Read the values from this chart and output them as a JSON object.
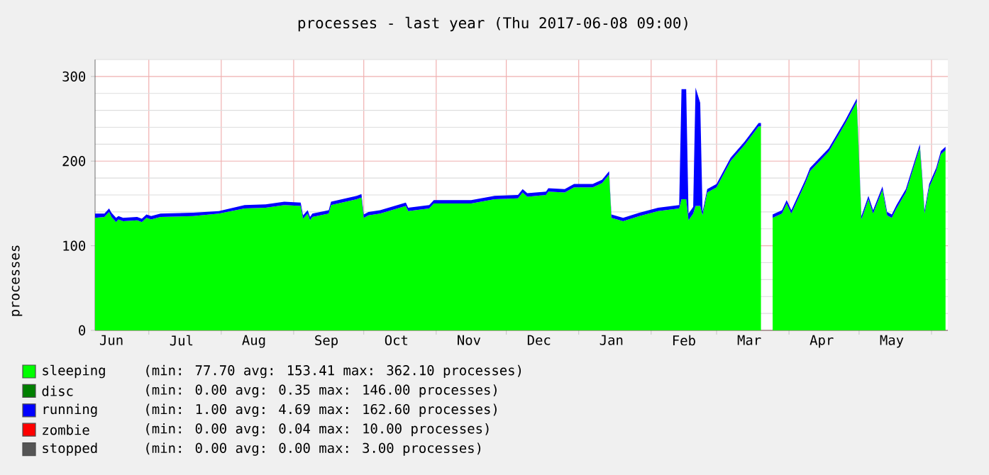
{
  "chart_data": {
    "type": "area",
    "stacked": true,
    "title": "processes - last year (Thu 2017-06-08 09:00)",
    "ylabel": "processes",
    "x": [
      "2016-06-08",
      "2016-06-12",
      "2016-06-14",
      "2016-06-15",
      "2016-06-17",
      "2016-06-18",
      "2016-06-20",
      "2016-06-26",
      "2016-06-28",
      "2016-06-30",
      "2016-07-02",
      "2016-07-06",
      "2016-07-20",
      "2016-07-31",
      "2016-08-11",
      "2016-08-20",
      "2016-08-28",
      "2016-09-04",
      "2016-09-05",
      "2016-09-07",
      "2016-09-08",
      "2016-09-09",
      "2016-09-16",
      "2016-09-17",
      "2016-09-28",
      "2016-09-30",
      "2016-10-01",
      "2016-10-03",
      "2016-10-08",
      "2016-10-19",
      "2016-10-20",
      "2016-10-29",
      "2016-10-31",
      "2016-11-16",
      "2016-11-26",
      "2016-12-06",
      "2016-12-08",
      "2016-12-10",
      "2016-12-18",
      "2016-12-19",
      "2016-12-26",
      "2016-12-30",
      "2017-01-07",
      "2017-01-11",
      "2017-01-14",
      "2017-01-15",
      "2017-01-20",
      "2017-01-27",
      "2017-02-04",
      "2017-02-13",
      "2017-02-14",
      "2017-02-16",
      "2017-02-17",
      "2017-02-19",
      "2017-02-20",
      "2017-02-22",
      "2017-02-23",
      "2017-02-25",
      "2017-03-01",
      "2017-03-07",
      "2017-03-13",
      "2017-03-19",
      "2017-03-20",
      "2017-03-22",
      "2017-03-25",
      "2017-03-29",
      "2017-03-31",
      "2017-04-02",
      "2017-04-08",
      "2017-04-10",
      "2017-04-18",
      "2017-04-25",
      "2017-04-30",
      "2017-05-02",
      "2017-05-05",
      "2017-05-07",
      "2017-05-11",
      "2017-05-13",
      "2017-05-15",
      "2017-05-17",
      "2017-05-21",
      "2017-05-27",
      "2017-05-28",
      "2017-05-29",
      "2017-05-31",
      "2017-06-03",
      "2017-06-05",
      "2017-06-07"
    ],
    "series": [
      {
        "name": "sleeping",
        "color": "#00ff00",
        "values": [
          133,
          134,
          140,
          134,
          128,
          131,
          129,
          130,
          128,
          133,
          131,
          134,
          135,
          138,
          144,
          145,
          148,
          147,
          132,
          138,
          130,
          134,
          138,
          148,
          155,
          157,
          133,
          136,
          138,
          147,
          141,
          144,
          150,
          150,
          155,
          156,
          163,
          158,
          160,
          164,
          163,
          169,
          169,
          174,
          184,
          133,
          129,
          135,
          141,
          144,
          155,
          155,
          130,
          138,
          147,
          147,
          136,
          163,
          169,
          200,
          219,
          241,
          241,
          null,
          133,
          138,
          150,
          138,
          174,
          188,
          211,
          244,
          270,
          131,
          155,
          138,
          166,
          136,
          133,
          144,
          163,
          216,
          180,
          138,
          169,
          188,
          208,
          213
        ]
      },
      {
        "name": "disc",
        "color": "#007f00",
        "values": [
          null,
          null,
          null,
          null,
          null,
          null,
          null,
          null,
          null,
          null,
          null,
          null,
          null,
          null,
          null,
          null,
          null,
          null,
          null,
          null,
          null,
          null,
          null,
          null,
          null,
          null,
          null,
          null,
          null,
          null,
          null,
          null,
          null,
          null,
          null,
          null,
          null,
          null,
          null,
          null,
          null,
          null,
          null,
          null,
          null,
          null,
          null,
          null,
          null,
          null,
          null,
          null,
          null,
          null,
          null,
          null,
          null,
          null,
          null,
          null,
          null,
          null,
          null,
          null,
          null,
          null,
          null,
          null,
          null,
          null,
          null,
          null,
          null,
          null,
          null,
          null,
          null,
          null,
          null,
          null,
          null,
          null,
          null,
          null,
          null,
          null,
          null,
          null
        ]
      },
      {
        "name": "running",
        "color": "#0000ff",
        "values": [
          5,
          4,
          4,
          5,
          5,
          4,
          4,
          4,
          4,
          4,
          4,
          4,
          4,
          3,
          4,
          4,
          4,
          4,
          4,
          4,
          4,
          4,
          4,
          4,
          4,
          4,
          4,
          4,
          4,
          4,
          4,
          4,
          4,
          4,
          4,
          4,
          4,
          4,
          4,
          4,
          4,
          4,
          4,
          4,
          4,
          4,
          4,
          4,
          4,
          4,
          130,
          130,
          8,
          8,
          140,
          122,
          4,
          4,
          4,
          4,
          4,
          4,
          4,
          null,
          4,
          4,
          4,
          4,
          4,
          4,
          4,
          4,
          4,
          4,
          4,
          4,
          4,
          4,
          4,
          4,
          4,
          4,
          4,
          4,
          4,
          4,
          4,
          4
        ]
      },
      {
        "name": "zombie",
        "color": "#ff0000",
        "values": [
          null,
          null,
          null,
          null,
          null,
          null,
          null,
          null,
          null,
          null,
          null,
          null,
          null,
          null,
          null,
          null,
          null,
          null,
          null,
          null,
          null,
          null,
          null,
          null,
          null,
          null,
          null,
          null,
          null,
          null,
          null,
          null,
          null,
          null,
          null,
          null,
          null,
          null,
          null,
          null,
          null,
          null,
          null,
          null,
          null,
          null,
          null,
          null,
          null,
          null,
          null,
          null,
          null,
          null,
          null,
          null,
          null,
          null,
          null,
          null,
          null,
          null,
          null,
          null,
          null,
          null,
          null,
          null,
          null,
          null,
          null,
          null,
          null,
          null,
          null,
          null,
          null,
          null,
          null,
          null,
          null,
          null,
          null,
          null,
          null,
          null,
          null,
          null
        ]
      },
      {
        "name": "stopped",
        "color": "#555555",
        "values": [
          null,
          null,
          null,
          null,
          null,
          null,
          null,
          null,
          null,
          null,
          null,
          null,
          null,
          null,
          null,
          null,
          null,
          null,
          null,
          null,
          null,
          null,
          null,
          null,
          null,
          null,
          null,
          null,
          null,
          null,
          null,
          null,
          null,
          null,
          null,
          null,
          null,
          null,
          null,
          null,
          null,
          null,
          null,
          null,
          null,
          null,
          null,
          null,
          null,
          null,
          null,
          null,
          null,
          null,
          null,
          null,
          null,
          null,
          null,
          null,
          null,
          null,
          null,
          null,
          null,
          null,
          null,
          null,
          null,
          null,
          null,
          null,
          null,
          null,
          null,
          null,
          null,
          null,
          null,
          null,
          null,
          null,
          null,
          null,
          null,
          null,
          null,
          null
        ]
      }
    ],
    "xlim": [
      "2016-06-08",
      "2017-06-08"
    ],
    "xticks": [
      {
        "value": "2016-06-15",
        "label": "Jun"
      },
      {
        "value": "2016-07-01",
        "label": null
      },
      {
        "value": "2016-07-15",
        "label": "Jul"
      },
      {
        "value": "2016-08-01",
        "label": null
      },
      {
        "value": "2016-08-15",
        "label": "Aug"
      },
      {
        "value": "2016-09-01",
        "label": null
      },
      {
        "value": "2016-09-15",
        "label": "Sep"
      },
      {
        "value": "2016-10-01",
        "label": null
      },
      {
        "value": "2016-10-15",
        "label": "Oct"
      },
      {
        "value": "2016-11-01",
        "label": null
      },
      {
        "value": "2016-11-15",
        "label": "Nov"
      },
      {
        "value": "2016-12-01",
        "label": null
      },
      {
        "value": "2016-12-15",
        "label": "Dec"
      },
      {
        "value": "2017-01-01",
        "label": null
      },
      {
        "value": "2017-01-15",
        "label": "Jan"
      },
      {
        "value": "2017-02-01",
        "label": null
      },
      {
        "value": "2017-02-15",
        "label": "Feb"
      },
      {
        "value": "2017-03-01",
        "label": null
      },
      {
        "value": "2017-03-15",
        "label": "Mar"
      },
      {
        "value": "2017-04-01",
        "label": null
      },
      {
        "value": "2017-04-15",
        "label": "Apr"
      },
      {
        "value": "2017-05-01",
        "label": null
      },
      {
        "value": "2017-05-15",
        "label": "May"
      },
      {
        "value": "2017-06-01",
        "label": null
      }
    ],
    "ylim": [
      0,
      320
    ],
    "yticks": [
      0,
      {
        "value": 20,
        "label": null
      },
      {
        "value": 40,
        "label": null
      },
      {
        "value": 60,
        "label": null
      },
      {
        "value": 80,
        "label": null
      },
      100,
      {
        "value": 120,
        "label": null
      },
      {
        "value": 140,
        "label": null
      },
      {
        "value": 160,
        "label": null
      },
      {
        "value": 180,
        "label": null
      },
      200,
      {
        "value": 220,
        "label": null
      },
      {
        "value": 240,
        "label": null
      },
      {
        "value": 260,
        "label": null
      },
      {
        "value": 280,
        "label": null
      },
      300,
      {
        "value": 320,
        "label": null
      }
    ],
    "grid": true,
    "legend": "bottom",
    "annotations": [
      "(min: 77.70 avg: 153.41 max: 362.10 processes)",
      "(min: 0.00 avg: 0.35 max: 146.00 processes)",
      "(min: 1.00 avg: 4.69 max: 162.60 processes)",
      "(min: 0.00 avg: 0.04 max: 10.00 processes)",
      "(min: 0.00 avg: 0.00 max: 3.00 processes)"
    ]
  }
}
